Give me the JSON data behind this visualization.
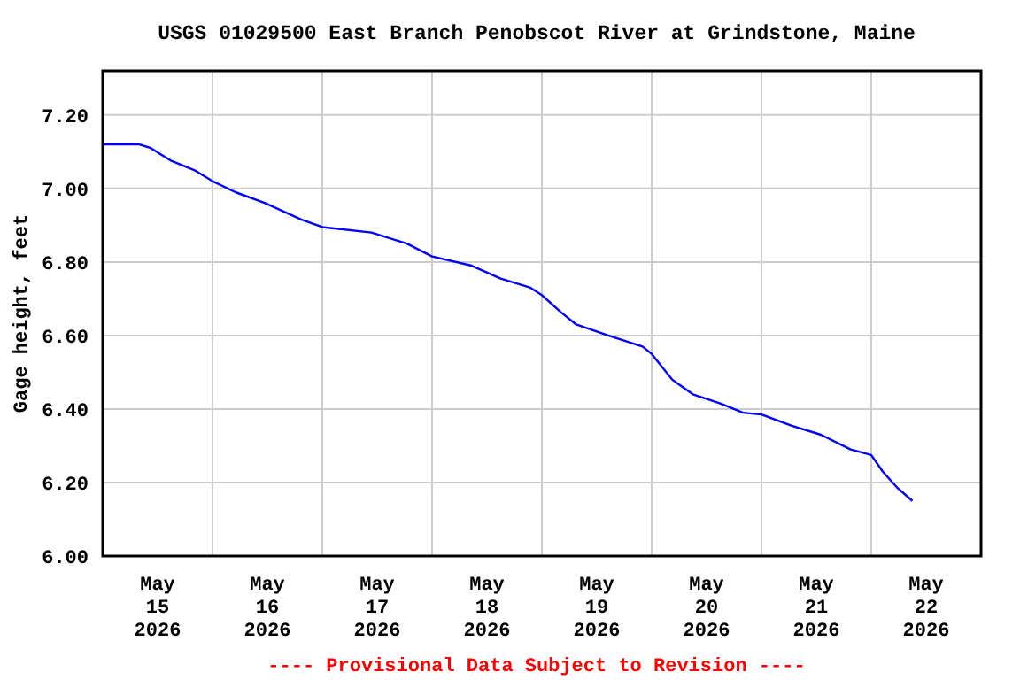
{
  "chart_data": {
    "type": "line",
    "title": "USGS 01029500 East Branch Penobscot River at Grindstone, Maine",
    "ylabel": "Gage height, feet",
    "annotations": [
      "---- Provisional Data Subject to Revision ----"
    ],
    "x": [
      "2026-05-15T00:00",
      "2026-05-15T08:00",
      "2026-05-15T10:30",
      "2026-05-15T15:00",
      "2026-05-15T20:00",
      "2026-05-16T00:00",
      "2026-05-16T05:00",
      "2026-05-16T11:30",
      "2026-05-16T19:30",
      "2026-05-17T00:00",
      "2026-05-17T10:45",
      "2026-05-17T18:30",
      "2026-05-18T00:00",
      "2026-05-18T08:40",
      "2026-05-18T15:00",
      "2026-05-18T21:30",
      "2026-05-19T00:00",
      "2026-05-19T04:00",
      "2026-05-19T07:30",
      "2026-05-19T14:30",
      "2026-05-19T22:00",
      "2026-05-20T00:00",
      "2026-05-20T04:30",
      "2026-05-20T09:00",
      "2026-05-20T15:00",
      "2026-05-20T20:00",
      "2026-05-21T00:00",
      "2026-05-21T06:30",
      "2026-05-21T13:00",
      "2026-05-21T19:30",
      "2026-05-22T00:00",
      "2026-05-22T02:30",
      "2026-05-22T05:45",
      "2026-05-22T09:00"
    ],
    "series": [
      {
        "color": "#0000ff",
        "values": [
          7.12,
          7.12,
          7.11,
          7.075,
          7.05,
          7.02,
          6.99,
          6.96,
          6.915,
          6.895,
          6.88,
          6.85,
          6.815,
          6.79,
          6.755,
          6.73,
          6.71,
          6.665,
          6.63,
          6.6,
          6.57,
          6.55,
          6.48,
          6.44,
          6.415,
          6.39,
          6.385,
          6.355,
          6.33,
          6.29,
          6.275,
          6.23,
          6.185,
          6.15
        ]
      }
    ],
    "xlim": [
      "2026-05-15T00:00",
      "2026-05-23T00:00"
    ],
    "xticks": [
      {
        "value": "2026-05-15T00:00",
        "label": null
      },
      {
        "value": "2026-05-15T12:00",
        "label": "May\n15\n2026"
      },
      {
        "value": "2026-05-16T00:00",
        "label": null
      },
      {
        "value": "2026-05-16T12:00",
        "label": "May\n16\n2026"
      },
      {
        "value": "2026-05-17T00:00",
        "label": null
      },
      {
        "value": "2026-05-17T12:00",
        "label": "May\n17\n2026"
      },
      {
        "value": "2026-05-18T00:00",
        "label": null
      },
      {
        "value": "2026-05-18T12:00",
        "label": "May\n18\n2026"
      },
      {
        "value": "2026-05-19T00:00",
        "label": null
      },
      {
        "value": "2026-05-19T12:00",
        "label": "May\n19\n2026"
      },
      {
        "value": "2026-05-20T00:00",
        "label": null
      },
      {
        "value": "2026-05-20T12:00",
        "label": "May\n20\n2026"
      },
      {
        "value": "2026-05-21T00:00",
        "label": null
      },
      {
        "value": "2026-05-21T12:00",
        "label": "May\n21\n2026"
      },
      {
        "value": "2026-05-22T00:00",
        "label": null
      },
      {
        "value": "2026-05-22T12:00",
        "label": "May\n22\n2026"
      },
      {
        "value": "2026-05-23T00:00",
        "label": null
      }
    ],
    "ylim": [
      6.0,
      7.32
    ],
    "yticks": [
      {
        "value": 6.0,
        "label": "6.00"
      },
      {
        "value": 6.2,
        "label": "6.20"
      },
      {
        "value": 6.4,
        "label": "6.40"
      },
      {
        "value": 6.6,
        "label": "6.60"
      },
      {
        "value": 6.8,
        "label": "6.80"
      },
      {
        "value": 7.0,
        "label": "7.00"
      },
      {
        "value": 7.2,
        "label": "7.20"
      }
    ],
    "grid": true,
    "marker": "none",
    "line_style": "solid"
  }
}
